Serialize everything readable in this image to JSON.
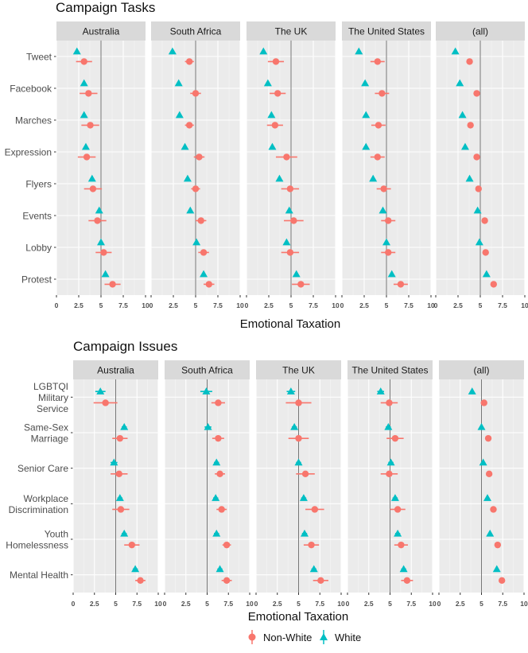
{
  "chart_data": [
    {
      "type": "dot-errorbar",
      "title": "Campaign Tasks",
      "xlabel": "Emotional Taxation",
      "xlim": [
        0,
        10
      ],
      "xticks": [
        0,
        2.5,
        5,
        7.5,
        10
      ],
      "xtick_labels": [
        "0",
        "2.5",
        "5",
        "7.5",
        "10"
      ],
      "reference_line": 5,
      "panels": [
        "Australia",
        "South Africa",
        "The UK",
        "The United States",
        "(all)"
      ],
      "categories": [
        "Tweet",
        "Facebook",
        "Marches",
        "Expression",
        "Flyers",
        "Events",
        "Lobby",
        "Protest"
      ],
      "series": [
        {
          "name": "Non-White",
          "marker": "circle",
          "values": [
            [
              3.1,
              3.6,
              3.8,
              3.4,
              4.1,
              4.6,
              5.3,
              6.3
            ],
            [
              4.3,
              5.0,
              4.3,
              5.4,
              5.0,
              5.6,
              5.9,
              6.5
            ],
            [
              3.3,
              3.5,
              3.2,
              4.5,
              4.9,
              5.3,
              4.9,
              6.1
            ],
            [
              4.0,
              4.5,
              4.1,
              4.0,
              4.7,
              5.2,
              5.2,
              6.6
            ],
            [
              3.8,
              4.6,
              3.9,
              4.6,
              4.8,
              5.5,
              5.6,
              6.5
            ]
          ],
          "errors": [
            [
              0.9,
              1.0,
              1.0,
              1.0,
              1.0,
              1.0,
              0.9,
              0.9
            ],
            [
              0.5,
              0.6,
              0.5,
              0.6,
              0.5,
              0.6,
              0.6,
              0.6
            ],
            [
              0.9,
              0.9,
              0.9,
              1.2,
              1.0,
              1.1,
              1.0,
              1.0
            ],
            [
              0.8,
              0.8,
              0.8,
              0.8,
              0.8,
              0.8,
              0.8,
              0.8
            ],
            [
              0.2,
              0.2,
              0.2,
              0.2,
              0.2,
              0.2,
              0.2,
              0.2
            ]
          ]
        },
        {
          "name": "White",
          "marker": "triangle",
          "values": [
            [
              2.3,
              3.1,
              3.1,
              3.3,
              4.0,
              4.8,
              5.0,
              5.5
            ],
            [
              2.4,
              3.1,
              3.2,
              3.8,
              4.1,
              4.4,
              5.1,
              5.9
            ],
            [
              1.9,
              2.4,
              2.8,
              2.9,
              3.7,
              4.8,
              4.5,
              5.6
            ],
            [
              1.9,
              2.6,
              2.7,
              2.7,
              3.5,
              4.6,
              5.0,
              5.6
            ],
            [
              2.2,
              2.7,
              3.0,
              3.3,
              3.8,
              4.7,
              4.9,
              5.7
            ]
          ],
          "errors": [
            [
              0.2,
              0.2,
              0.2,
              0.2,
              0.2,
              0.2,
              0.2,
              0.2
            ],
            [
              0.2,
              0.2,
              0.2,
              0.2,
              0.2,
              0.2,
              0.2,
              0.2
            ],
            [
              0.2,
              0.2,
              0.2,
              0.2,
              0.2,
              0.2,
              0.2,
              0.2
            ],
            [
              0.2,
              0.2,
              0.2,
              0.2,
              0.2,
              0.2,
              0.2,
              0.2
            ],
            [
              0.1,
              0.1,
              0.1,
              0.1,
              0.1,
              0.1,
              0.1,
              0.1
            ]
          ]
        }
      ]
    },
    {
      "type": "dot-errorbar",
      "title": "Campaign Issues",
      "xlabel": "Emotional Taxation",
      "xlim": [
        0,
        10
      ],
      "xticks": [
        0,
        2.5,
        5,
        7.5,
        10
      ],
      "xtick_labels": [
        "0",
        "2.5",
        "5",
        "7.5",
        "10"
      ],
      "reference_line": 5,
      "panels": [
        "Australia",
        "South Africa",
        "The UK",
        "The United States",
        "(all)"
      ],
      "categories": [
        [
          "LGBTQI",
          "Military",
          "Service"
        ],
        [
          "Same-Sex",
          "Marriage"
        ],
        [
          "Senior Care"
        ],
        [
          "Workplace",
          "Discrimination"
        ],
        [
          "Youth",
          "Homelessness"
        ],
        [
          "Mental Health"
        ]
      ],
      "series": [
        {
          "name": "Non-White",
          "marker": "circle",
          "values": [
            [
              3.8,
              5.5,
              5.4,
              5.6,
              6.9,
              7.9
            ],
            [
              6.3,
              6.3,
              6.5,
              6.7,
              7.3,
              7.3
            ],
            [
              5.0,
              5.0,
              5.8,
              6.9,
              6.5,
              7.6
            ],
            [
              4.9,
              5.6,
              4.9,
              5.9,
              6.3,
              7.0
            ],
            [
              5.3,
              5.8,
              5.9,
              6.4,
              6.9,
              7.4
            ]
          ],
          "errors": [
            [
              1.4,
              0.9,
              1.0,
              1.0,
              0.9,
              0.6
            ],
            [
              0.8,
              0.7,
              0.6,
              0.6,
              0.5,
              0.6
            ],
            [
              1.5,
              1.2,
              1.1,
              1.1,
              0.9,
              0.9
            ],
            [
              1.0,
              1.0,
              1.0,
              0.9,
              0.8,
              0.7
            ],
            [
              0.3,
              0.3,
              0.3,
              0.3,
              0.3,
              0.3
            ]
          ]
        },
        {
          "name": "White",
          "marker": "triangle",
          "values": [
            [
              3.2,
              6.0,
              4.8,
              5.5,
              6.0,
              7.3
            ],
            [
              4.9,
              5.1,
              6.1,
              6.0,
              6.1,
              6.5
            ],
            [
              4.1,
              4.5,
              5.0,
              5.6,
              5.7,
              6.8
            ],
            [
              3.9,
              4.8,
              5.1,
              5.6,
              5.9,
              6.6
            ],
            [
              3.9,
              5.0,
              5.2,
              5.7,
              6.0,
              6.8
            ]
          ],
          "errors": [
            [
              0.6,
              0.3,
              0.4,
              0.3,
              0.3,
              0.3
            ],
            [
              0.7,
              0.4,
              0.3,
              0.3,
              0.3,
              0.3
            ],
            [
              0.5,
              0.3,
              0.3,
              0.3,
              0.3,
              0.3
            ],
            [
              0.4,
              0.3,
              0.3,
              0.3,
              0.3,
              0.3
            ],
            [
              0.2,
              0.2,
              0.2,
              0.2,
              0.2,
              0.2
            ]
          ]
        }
      ]
    }
  ],
  "legend": {
    "items": [
      {
        "label": "Non-White",
        "color": "#F8766D",
        "marker": "circle"
      },
      {
        "label": "White",
        "color": "#00BFC4",
        "marker": "triangle"
      }
    ]
  },
  "colors": {
    "Non-White": "#F8766D",
    "White": "#00BFC4",
    "panel_bg": "#EBEBEB",
    "strip_bg": "#D9D9D9",
    "grid_major": "#FFFFFF",
    "grid_minor": "#F5F5F5",
    "ref_line": "#555555",
    "text": "#1A1A1A",
    "tick_text": "#4D4D4D"
  }
}
